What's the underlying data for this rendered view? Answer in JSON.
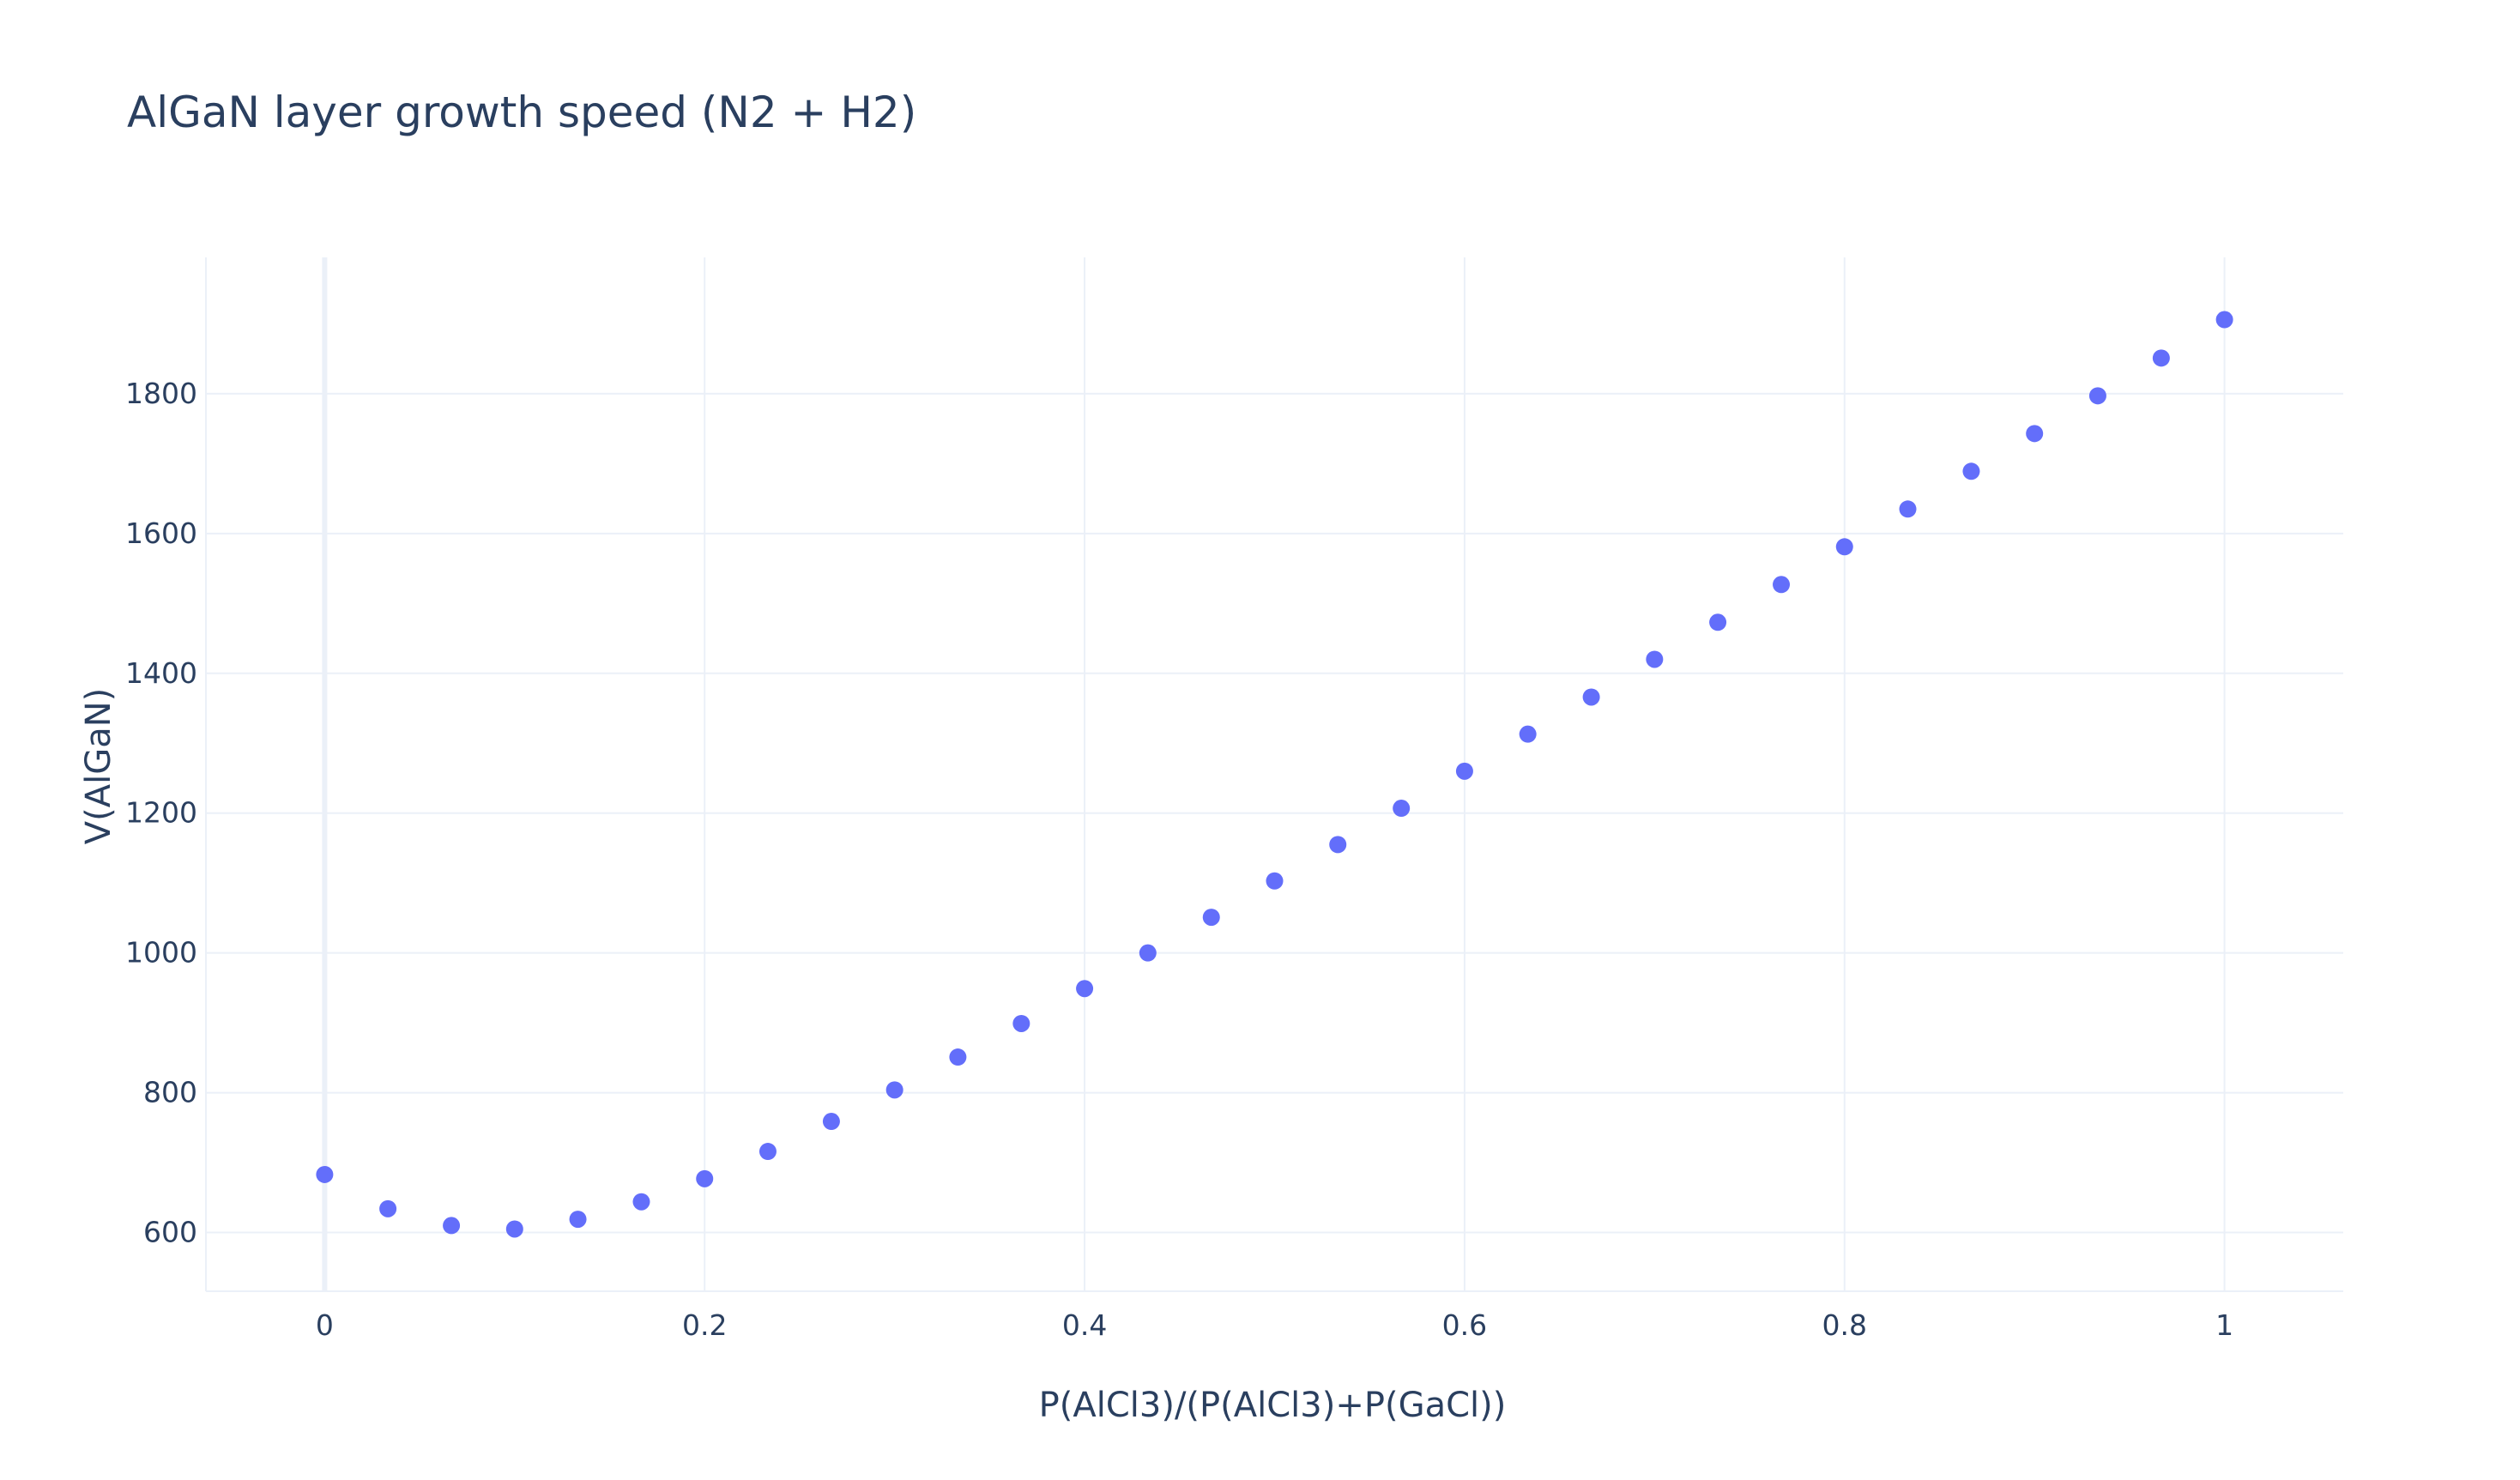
{
  "chart_data": {
    "type": "scatter",
    "title": "AlGaN layer growth speed (N2 + H2)",
    "xlabel": "P(AlCl3)/(P(AlCl3)+P(GaCl))",
    "ylabel": "V(AlGaN)",
    "xlim": [
      -0.0625,
      1.0625
    ],
    "ylim": [
      516,
      1995
    ],
    "xticks": [
      0,
      0.2,
      0.4,
      0.6,
      0.8,
      1
    ],
    "xtick_labels": [
      "0",
      "0.2",
      "0.4",
      "0.6",
      "0.8",
      "1"
    ],
    "yticks": [
      600,
      800,
      1000,
      1200,
      1400,
      1600,
      1800
    ],
    "ytick_labels": [
      "600",
      "800",
      "1000",
      "1200",
      "1400",
      "1600",
      "1800"
    ],
    "grid": true,
    "marker_color": "#636efa",
    "grid_color": "#ebf0f8",
    "zeroline_color": "#ebf0f8",
    "x": [
      0,
      0.0333,
      0.0667,
      0.1,
      0.1333,
      0.1667,
      0.2,
      0.2333,
      0.2667,
      0.3,
      0.3333,
      0.3667,
      0.4,
      0.4333,
      0.4667,
      0.5,
      0.5333,
      0.5667,
      0.6,
      0.6333,
      0.6667,
      0.7,
      0.7333,
      0.7667,
      0.8,
      0.8333,
      0.8667,
      0.9,
      0.9333,
      0.9667,
      1
    ],
    "y": [
      683,
      634,
      610,
      605,
      619,
      644,
      677,
      716,
      759,
      804,
      851,
      899,
      949,
      1000,
      1051,
      1103,
      1155,
      1207,
      1260,
      1313,
      1366,
      1420,
      1473,
      1527,
      1581,
      1635,
      1689,
      1743,
      1797,
      1851,
      1906
    ]
  }
}
